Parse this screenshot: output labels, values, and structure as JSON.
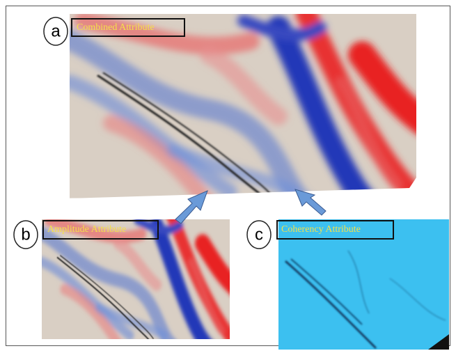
{
  "panels": [
    {
      "letter": "a",
      "label": "Combined Attribute"
    },
    {
      "letter": "b",
      "label": "Amplitude Attribute"
    },
    {
      "letter": "c",
      "label": "Coherency Attribute"
    }
  ]
}
